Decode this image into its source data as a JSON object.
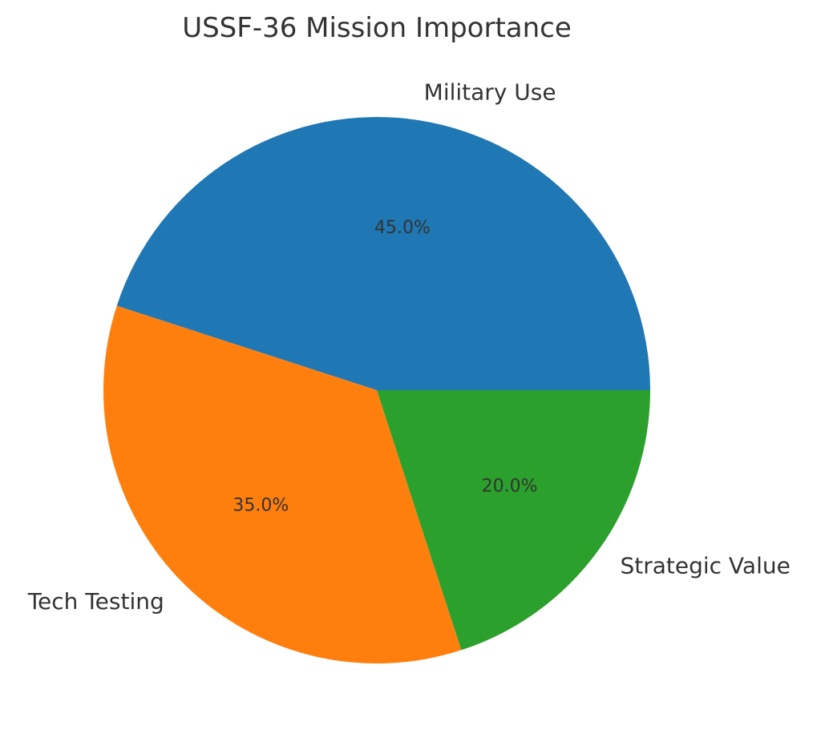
{
  "chart_data": {
    "type": "pie",
    "title": "USSF-36 Mission Importance",
    "categories": [
      "Military Use",
      "Tech Testing",
      "Strategic Value"
    ],
    "values": [
      45.0,
      35.0,
      20.0
    ],
    "value_labels": [
      "45.0%",
      "35.0%",
      "20.0%"
    ],
    "colors": [
      "#1f77b4",
      "#ff7f0e",
      "#2ca02c"
    ],
    "start_angle_deg": 0,
    "direction": "counterclockwise",
    "legend": "none"
  }
}
